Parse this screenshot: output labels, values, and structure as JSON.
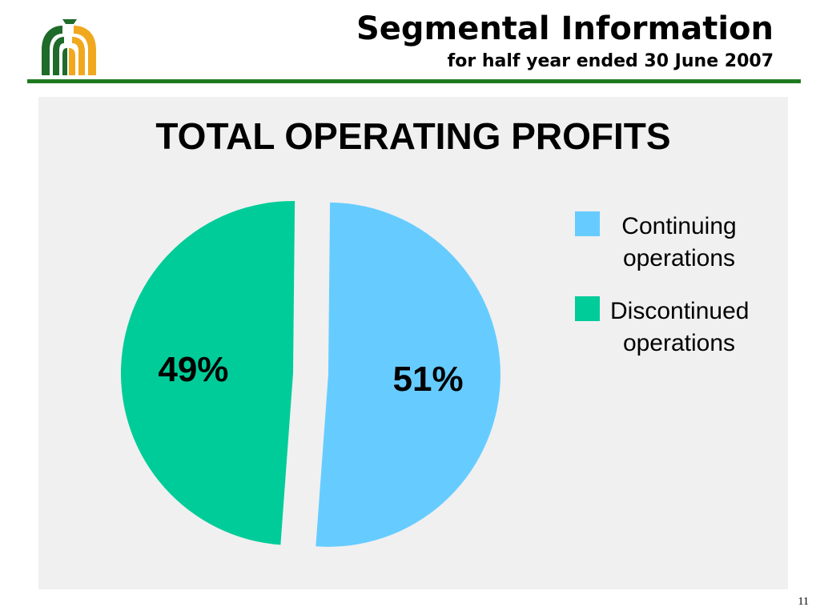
{
  "header": {
    "title": "Segmental Information",
    "subtitle": "for half year ended 30 June 2007"
  },
  "colors": {
    "rule": "#1f7a1f",
    "logo_dark": "#1f6b2a",
    "logo_gold": "#f0a81e",
    "panel": "#f0f0f0"
  },
  "chart_data": {
    "type": "pie",
    "title": "TOTAL OPERATING PROFITS",
    "legend_position": "right",
    "slices": [
      {
        "label": "Continuing operations",
        "value": 51,
        "display": "51%",
        "color": "#66ccff",
        "exploded": true
      },
      {
        "label": "Discontinued operations",
        "value": 49,
        "display": "49%",
        "color": "#00cc99",
        "exploded": false
      }
    ]
  },
  "legend": {
    "items": [
      {
        "line1": "Continuing",
        "line2": "operations",
        "color": "#66ccff"
      },
      {
        "line1": "Discontinued",
        "line2": "operations",
        "color": "#00cc99"
      }
    ]
  },
  "footer": {
    "page_number": "11"
  }
}
